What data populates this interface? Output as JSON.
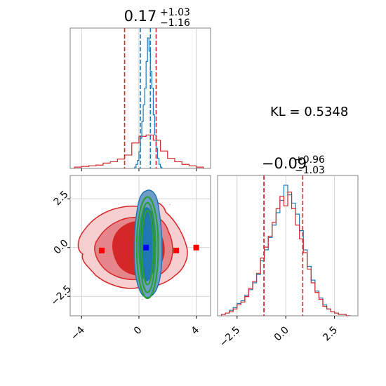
{
  "colors": {
    "red": "#d62728",
    "blue": "#1f77b4",
    "green": "#2ca02c",
    "red_fill_dark": "#d62728",
    "red_fill_mid": "#e7868a",
    "red_fill_light": "#f6cfd0",
    "blue_fill": "#6d9dc8",
    "marker_red": "#ff0000",
    "marker_blue": "#0000ff",
    "grid": "#c8c8c8",
    "axis": "#808080"
  },
  "titles": {
    "p1_main": "0.17",
    "p1_sup": "+1.03",
    "p1_sub": "−1.16",
    "p2_main": "−0.09",
    "p2_sup": "+0.96",
    "p2_sub": "−1.03",
    "kl": "KL = 0.5348"
  },
  "chart_data": [
    {
      "type": "histogram",
      "panel": "top-left marginal (parameter 1)",
      "xlim": [
        -4.8,
        5.0
      ],
      "yticks_visible": false,
      "grid": true,
      "series": [
        {
          "name": "",
          "color": "#d62728",
          "bin_edges": [
            -4.5,
            -4.0,
            -3.5,
            -3.0,
            -2.5,
            -2.0,
            -1.5,
            -1.0,
            -0.5,
            0.0,
            0.5,
            1.0,
            1.5,
            2.0,
            2.5,
            3.0,
            3.5,
            4.0,
            4.5
          ],
          "heights": [
            0.02,
            0.03,
            0.04,
            0.05,
            0.08,
            0.1,
            0.14,
            0.2,
            0.38,
            0.48,
            0.5,
            0.42,
            0.26,
            0.15,
            0.1,
            0.06,
            0.04,
            0.02
          ]
        },
        {
          "name": "",
          "color": "#1f77b4",
          "bin_edges": [
            -0.3,
            -0.2,
            -0.1,
            0.0,
            0.1,
            0.2,
            0.3,
            0.4,
            0.5,
            0.6,
            0.7,
            0.8,
            0.9,
            1.0,
            1.1,
            1.2,
            1.3,
            1.4,
            1.5,
            1.6
          ],
          "heights": [
            0.02,
            0.06,
            0.12,
            0.25,
            0.45,
            0.7,
            0.95,
            1.2,
            1.6,
            1.95,
            1.75,
            1.45,
            1.2,
            0.8,
            0.5,
            0.3,
            0.15,
            0.06,
            0.02
          ]
        }
      ],
      "quantile_lines": {
        "red": [
          -1.0,
          1.2
        ],
        "blue": [
          0.1,
          0.8
        ]
      }
    },
    {
      "type": "contour",
      "panel": "bottom-left 2D (parameter 1 vs parameter 2)",
      "xlim": [
        -4.8,
        5.0
      ],
      "ylim": [
        -3.5,
        3.7
      ],
      "xticks": [
        -4,
        0,
        4
      ],
      "xtick_labels": [
        "−4",
        "0",
        "4"
      ],
      "yticks": [
        -2.5,
        0.0,
        2.5
      ],
      "ytick_labels": [
        "−2.5",
        "0.0",
        "2.5"
      ],
      "grid": true,
      "series": [
        {
          "name": "",
          "color": "#d62728",
          "kind": "filled density, 3 levels"
        },
        {
          "name": "",
          "color": "#1f77b4",
          "kind": "filled density, narrow"
        },
        {
          "name": "",
          "color": "#2ca02c",
          "kind": "ellipses",
          "center": [
            0.6,
            0.0
          ],
          "semi_axes": [
            [
              0.4,
              1.9
            ],
            [
              0.55,
              2.3
            ],
            [
              0.75,
              2.6
            ]
          ]
        }
      ],
      "markers": [
        {
          "x": 0.5,
          "y": 0.0,
          "color": "#0000ff"
        },
        {
          "x": -2.6,
          "y": -0.15,
          "color": "#ff0000"
        },
        {
          "x": 2.6,
          "y": -0.15,
          "color": "#ff0000"
        },
        {
          "x": 4.0,
          "y": 0.0,
          "color": "#ff0000"
        }
      ]
    },
    {
      "type": "histogram",
      "panel": "bottom-right marginal (parameter 2)",
      "xlim": [
        -3.5,
        3.7
      ],
      "xticks": [
        -2.5,
        0.0,
        2.5
      ],
      "xtick_labels": [
        "−2.5",
        "0.0",
        "2.5"
      ],
      "yticks_visible": false,
      "grid": true,
      "series": [
        {
          "name": "",
          "color": "#1f77b4",
          "bin_edges": [
            -3.3,
            -3.1,
            -2.9,
            -2.7,
            -2.5,
            -2.3,
            -2.1,
            -1.9,
            -1.7,
            -1.5,
            -1.3,
            -1.1,
            -0.9,
            -0.7,
            -0.5,
            -0.3,
            -0.1,
            0.1,
            0.3,
            0.5,
            0.7,
            0.9,
            1.1,
            1.3,
            1.5,
            1.7,
            1.9,
            2.1,
            2.3,
            2.5,
            2.7,
            2.9,
            3.1,
            3.3
          ],
          "heights": [
            0.01,
            0.02,
            0.04,
            0.06,
            0.09,
            0.11,
            0.15,
            0.19,
            0.24,
            0.3,
            0.4,
            0.48,
            0.57,
            0.66,
            0.75,
            0.84,
            0.95,
            0.88,
            0.82,
            0.74,
            0.62,
            0.48,
            0.36,
            0.26,
            0.18,
            0.13,
            0.08,
            0.05,
            0.03,
            0.02,
            0.01,
            0.01,
            0.0
          ]
        },
        {
          "name": "",
          "color": "#d62728",
          "bin_edges": [
            -3.3,
            -3.1,
            -2.9,
            -2.7,
            -2.5,
            -2.3,
            -2.1,
            -1.9,
            -1.7,
            -1.5,
            -1.3,
            -1.1,
            -0.9,
            -0.7,
            -0.5,
            -0.3,
            -0.1,
            0.1,
            0.3,
            0.5,
            0.7,
            0.9,
            1.1,
            1.3,
            1.5,
            1.7,
            1.9,
            2.1,
            2.3,
            2.5,
            2.7,
            2.9,
            3.1,
            3.3
          ],
          "heights": [
            0.01,
            0.02,
            0.03,
            0.05,
            0.08,
            0.1,
            0.14,
            0.2,
            0.25,
            0.31,
            0.42,
            0.5,
            0.58,
            0.68,
            0.78,
            0.87,
            0.8,
            0.9,
            0.78,
            0.66,
            0.56,
            0.46,
            0.34,
            0.24,
            0.17,
            0.12,
            0.07,
            0.05,
            0.03,
            0.02,
            0.01,
            0.01,
            0.0
          ]
        }
      ],
      "quantile_lines": {
        "red": [
          -1.12,
          0.87
        ],
        "blue": [
          -1.12
        ]
      }
    }
  ]
}
